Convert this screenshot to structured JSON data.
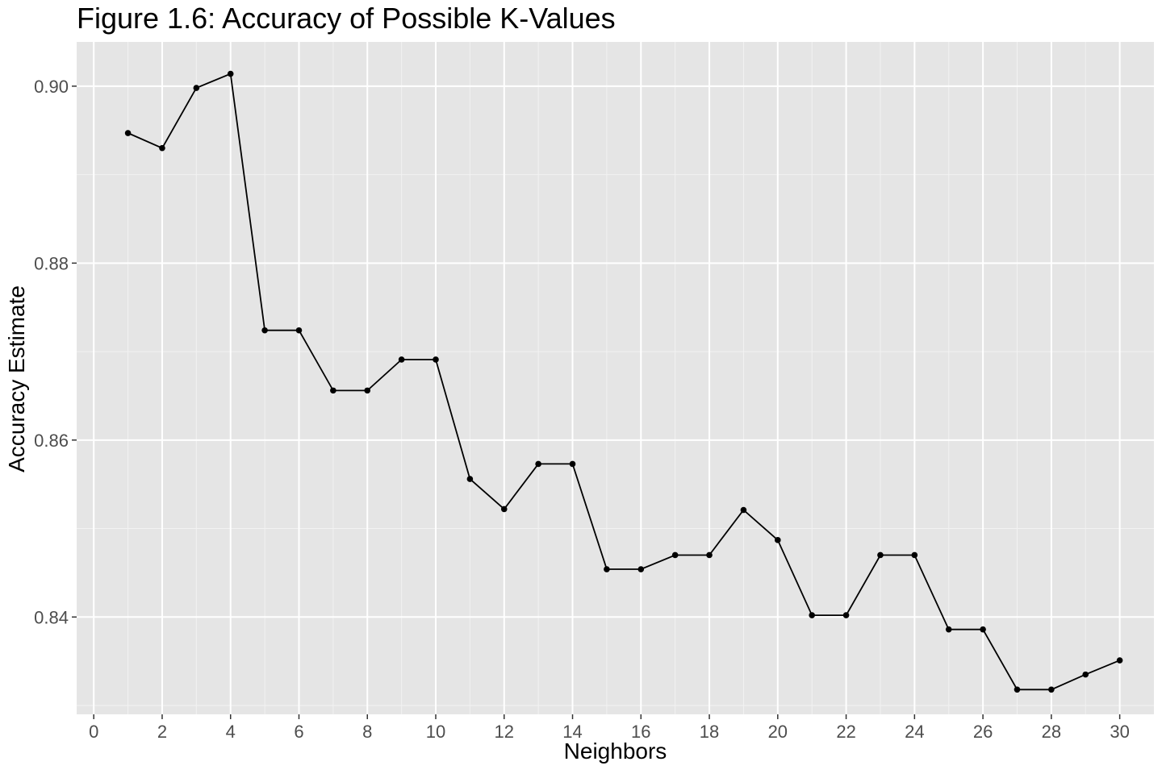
{
  "chart_data": {
    "type": "line",
    "title": "Figure 1.6: Accuracy of Possible K-Values",
    "xlabel": "Neighbors",
    "ylabel": "Accuracy Estimate",
    "xlim": [
      -0.5,
      31
    ],
    "ylim": [
      0.829,
      0.905
    ],
    "x_ticks": [
      0,
      2,
      4,
      6,
      8,
      10,
      12,
      14,
      16,
      18,
      20,
      22,
      24,
      26,
      28,
      30
    ],
    "y_ticks": [
      0.84,
      0.86,
      0.88,
      0.9
    ],
    "y_tick_labels": [
      "0.84",
      "0.86",
      "0.88",
      "0.90"
    ],
    "grid": true,
    "background": "#e5e5e5",
    "series": [
      {
        "color": "#000000",
        "markers": true,
        "x": [
          1,
          2,
          3,
          4,
          5,
          6,
          7,
          8,
          9,
          10,
          11,
          12,
          13,
          14,
          15,
          16,
          17,
          18,
          19,
          20,
          21,
          22,
          23,
          24,
          25,
          26,
          27,
          28,
          29,
          30
        ],
        "y": [
          0.8947,
          0.893,
          0.8998,
          0.9014,
          0.8724,
          0.8724,
          0.8656,
          0.8656,
          0.8691,
          0.8691,
          0.8556,
          0.8522,
          0.8573,
          0.8573,
          0.8454,
          0.8454,
          0.847,
          0.847,
          0.8521,
          0.8487,
          0.8402,
          0.8402,
          0.847,
          0.847,
          0.8386,
          0.8386,
          0.8318,
          0.8318,
          0.8335,
          0.8351
        ]
      }
    ]
  }
}
